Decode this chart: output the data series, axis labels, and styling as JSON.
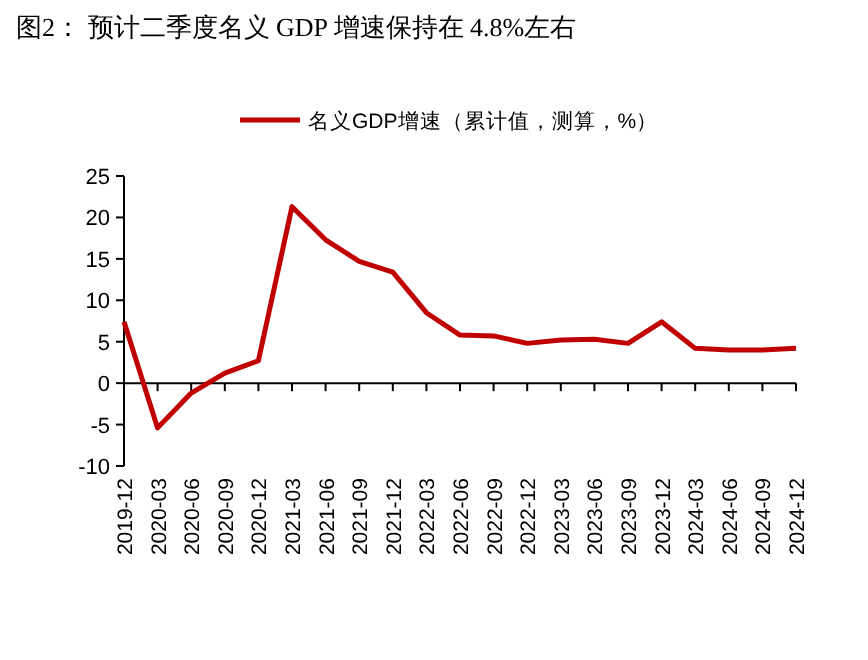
{
  "chart_data": {
    "type": "line",
    "title": "图2：  预计二季度名义 GDP 增速保持在 4.8%左右",
    "categories": [
      "2019-12",
      "2020-03",
      "2020-06",
      "2020-09",
      "2020-12",
      "2021-03",
      "2021-06",
      "2021-09",
      "2021-12",
      "2022-03",
      "2022-06",
      "2022-09",
      "2022-12",
      "2023-03",
      "2023-06",
      "2023-09",
      "2023-12",
      "2024-03",
      "2024-06",
      "2024-09",
      "2024-12"
    ],
    "series": [
      {
        "name": "名义GDP增速（累计值，测算，%）",
        "color": "#c00000",
        "values": [
          7.4,
          -5.4,
          -1.2,
          1.2,
          2.7,
          21.3,
          17.3,
          14.7,
          13.4,
          8.5,
          5.8,
          5.7,
          4.8,
          5.2,
          5.3,
          4.8,
          7.4,
          4.2,
          4.0,
          4.0,
          4.2
        ]
      }
    ],
    "ylim": [
      -10,
      25
    ],
    "yticks": [
      -10,
      -5,
      0,
      5,
      10,
      15,
      20,
      25
    ],
    "legend": "top",
    "marker": "none",
    "line_style": "solid"
  }
}
